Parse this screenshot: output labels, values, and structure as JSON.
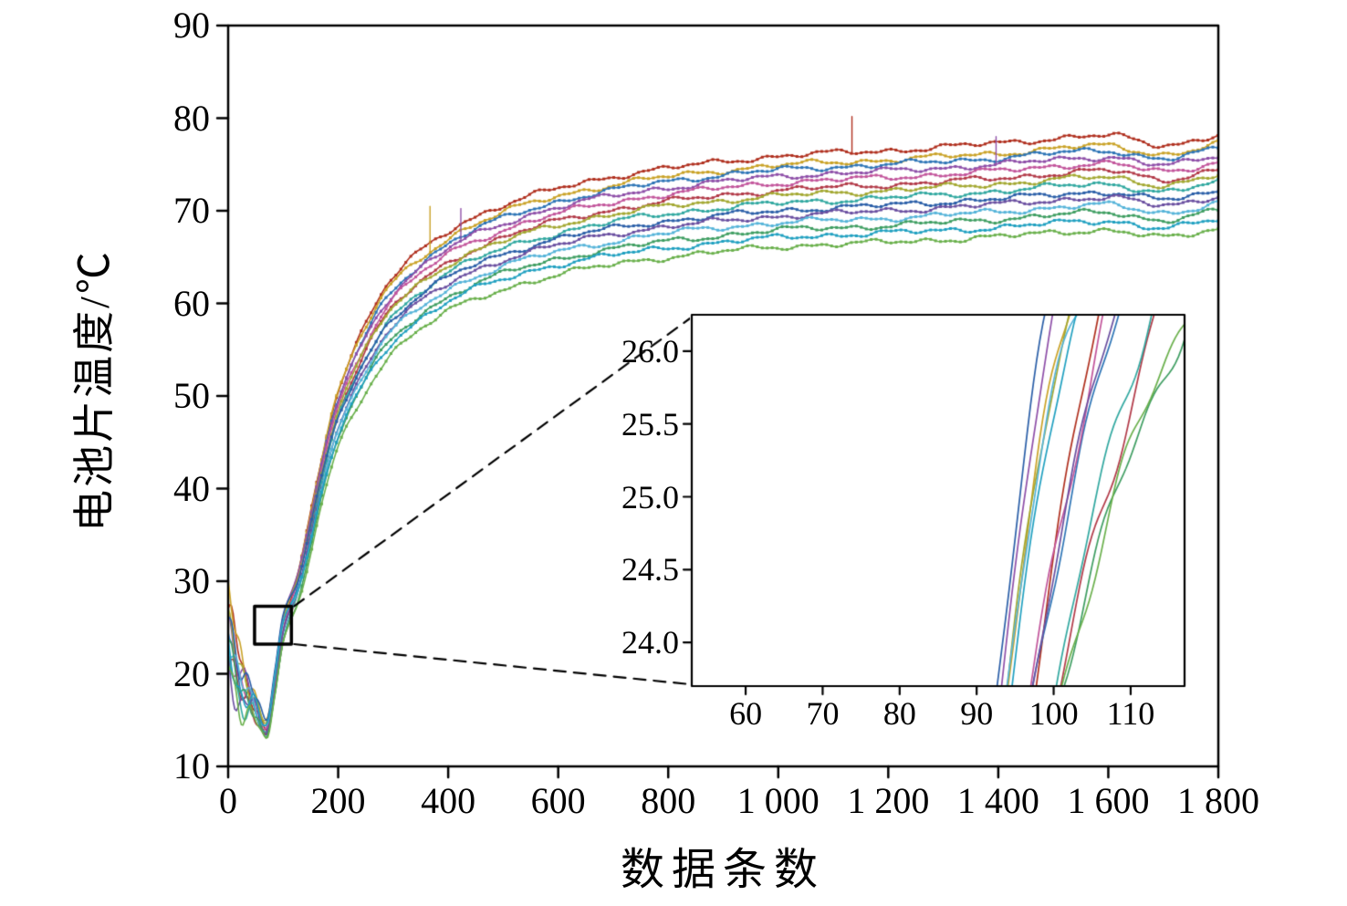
{
  "chart_data": {
    "type": "line",
    "title": "",
    "xlabel": "数据条数",
    "ylabel": "电池片温度/℃",
    "xlim": [
      0,
      1800
    ],
    "ylim": [
      10,
      90
    ],
    "grid": false,
    "legend": "none",
    "xticks": [
      0,
      200,
      400,
      600,
      800,
      1000,
      1200,
      1400,
      1600,
      1800
    ],
    "xtick_labels": [
      "0",
      "200",
      "400",
      "600",
      "800",
      "1 000",
      "1 200",
      "1 400",
      "1 600",
      "1 800"
    ],
    "yticks": [
      10,
      20,
      30,
      40,
      50,
      60,
      70,
      80,
      90
    ],
    "ytick_labels": [
      "10",
      "20",
      "30",
      "40",
      "50",
      "60",
      "70",
      "80",
      "90"
    ],
    "x": [
      0,
      20,
      45,
      70,
      85,
      100,
      130,
      170,
      200,
      250,
      300,
      400,
      500,
      600,
      700,
      800,
      1000,
      1200,
      1400,
      1600,
      1700,
      1800
    ],
    "series": [
      {
        "color": "#b0301f",
        "values": [
          27,
          22,
          17,
          14,
          18.5,
          24.5,
          31.5,
          43.4,
          50.6,
          57.8,
          62.8,
          67.8,
          70.6,
          72.4,
          73.7,
          74.6,
          75.9,
          76.5,
          77.3,
          78.1,
          77.1,
          78.2
        ]
      },
      {
        "color": "#c9a227",
        "values": [
          28,
          23,
          18,
          15,
          19.9,
          25.6,
          31.9,
          43.4,
          50.4,
          57.4,
          62.2,
          67.0,
          69.8,
          71.6,
          72.8,
          73.7,
          74.9,
          75.5,
          76.2,
          77.0,
          76.1,
          77.2
        ]
      },
      {
        "color": "#2e75b6",
        "values": [
          25,
          20,
          16.5,
          13.5,
          18.8,
          24.7,
          30.7,
          42.4,
          49.5,
          56.6,
          61.5,
          66.4,
          69.2,
          71.0,
          72.2,
          73.2,
          74.4,
          75.0,
          75.7,
          76.5,
          75.6,
          76.7
        ]
      },
      {
        "color": "#8e4fa8",
        "values": [
          26,
          21,
          17.5,
          14.5,
          20.2,
          26.3,
          31.2,
          42.6,
          49.5,
          56.4,
          61.1,
          65.9,
          68.6,
          70.4,
          71.6,
          72.5,
          73.7,
          74.3,
          75.0,
          75.8,
          74.9,
          76.0
        ]
      },
      {
        "color": "#c2559b",
        "values": [
          24,
          19,
          17,
          14,
          18.5,
          24.4,
          30.7,
          42.0,
          48.9,
          55.7,
          60.5,
          65.3,
          67.9,
          69.7,
          70.9,
          71.8,
          73.0,
          73.6,
          74.3,
          75.1,
          74.2,
          75.3
        ]
      },
      {
        "color": "#b23a48",
        "values": [
          23,
          18,
          16,
          13,
          17.9,
          23.6,
          29.7,
          41.1,
          48.0,
          54.9,
          59.6,
          64.4,
          67.1,
          68.9,
          70.1,
          71.0,
          72.2,
          72.8,
          73.5,
          74.3,
          73.4,
          74.5
        ]
      },
      {
        "color": "#a3a832",
        "values": [
          25.5,
          20.5,
          17.8,
          14.8,
          20.1,
          26.0,
          30.9,
          41.8,
          48.4,
          55.0,
          59.6,
          64.2,
          66.7,
          68.5,
          69.6,
          70.5,
          71.6,
          72.2,
          72.9,
          73.6,
          72.8,
          73.8
        ]
      },
      {
        "color": "#31a8a0",
        "values": [
          22,
          17,
          16.5,
          13.5,
          18.0,
          23.5,
          29.7,
          40.7,
          47.4,
          54.0,
          58.7,
          63.3,
          65.9,
          67.6,
          68.8,
          69.7,
          70.8,
          71.4,
          72.1,
          72.9,
          72.0,
          73.1
        ]
      },
      {
        "color": "#2b5fa8",
        "values": [
          26.5,
          21.5,
          18.2,
          15.2,
          20.5,
          26.4,
          30.7,
          41.2,
          47.6,
          54.0,
          58.4,
          62.8,
          65.3,
          67.0,
          68.1,
          68.9,
          70.0,
          70.6,
          71.3,
          72.0,
          71.2,
          72.1
        ]
      },
      {
        "color": "#6a4fa0",
        "values": [
          21,
          16.5,
          16.8,
          13.8,
          18.3,
          24.4,
          29.5,
          40.2,
          46.7,
          53.1,
          57.6,
          62.1,
          64.7,
          66.3,
          67.5,
          68.3,
          69.4,
          70.0,
          70.7,
          71.4,
          70.6,
          71.6
        ]
      },
      {
        "color": "#56b4d9",
        "values": [
          24.5,
          19.5,
          17.2,
          14.2,
          19.6,
          25.4,
          29.6,
          40.1,
          46.4,
          52.7,
          57.1,
          61.5,
          64.0,
          65.6,
          66.7,
          67.6,
          68.7,
          69.2,
          69.9,
          70.6,
          69.8,
          70.8
        ]
      },
      {
        "color": "#3f9e62",
        "values": [
          23.5,
          18.5,
          16.2,
          13.2,
          17.7,
          23.8,
          28.7,
          39.1,
          45.5,
          51.8,
          56.3,
          60.7,
          63.2,
          64.8,
          65.9,
          66.7,
          67.9,
          68.4,
          69.1,
          69.8,
          69.0,
          70.0
        ]
      },
      {
        "color": "#20a0c0",
        "values": [
          22.5,
          17.5,
          17.6,
          14.6,
          19.9,
          25.8,
          29.4,
          39.5,
          45.6,
          51.7,
          55.9,
          60.2,
          62.6,
          64.2,
          65.2,
          66.0,
          67.1,
          67.6,
          68.2,
          68.9,
          68.1,
          69.1
        ]
      },
      {
        "color": "#6ab04c",
        "values": [
          21.5,
          16.5,
          16,
          13,
          17.5,
          23.3,
          28.0,
          38.2,
          44.4,
          50.5,
          54.8,
          59.1,
          61.5,
          63.1,
          64.2,
          65.0,
          66.1,
          66.6,
          67.2,
          67.9,
          67.1,
          68.1
        ]
      }
    ],
    "artifact_spikes": [
      {
        "series": 1,
        "x": 367,
        "dy": 5
      },
      {
        "series": 3,
        "x": 423,
        "dy": 3.5
      },
      {
        "series": 0,
        "x": 1134,
        "dy": 4
      },
      {
        "series": 3,
        "x": 1396,
        "dy": 3
      }
    ],
    "zoom_marker": {
      "x0": 48,
      "x1": 115,
      "y0": 23.2,
      "y1": 27.3
    },
    "inset": {
      "xlim": [
        53,
        117
      ],
      "ylim": [
        23.7,
        26.25
      ],
      "xticks": [
        60,
        70,
        80,
        90,
        100,
        110
      ],
      "xtick_labels": [
        "60",
        "70",
        "80",
        "90",
        "100",
        "110"
      ],
      "yticks": [
        24.0,
        24.5,
        25.0,
        25.5,
        26.0
      ],
      "ytick_labels": [
        "24.0",
        "24.5",
        "25.0",
        "25.5",
        "26.0"
      ]
    }
  }
}
